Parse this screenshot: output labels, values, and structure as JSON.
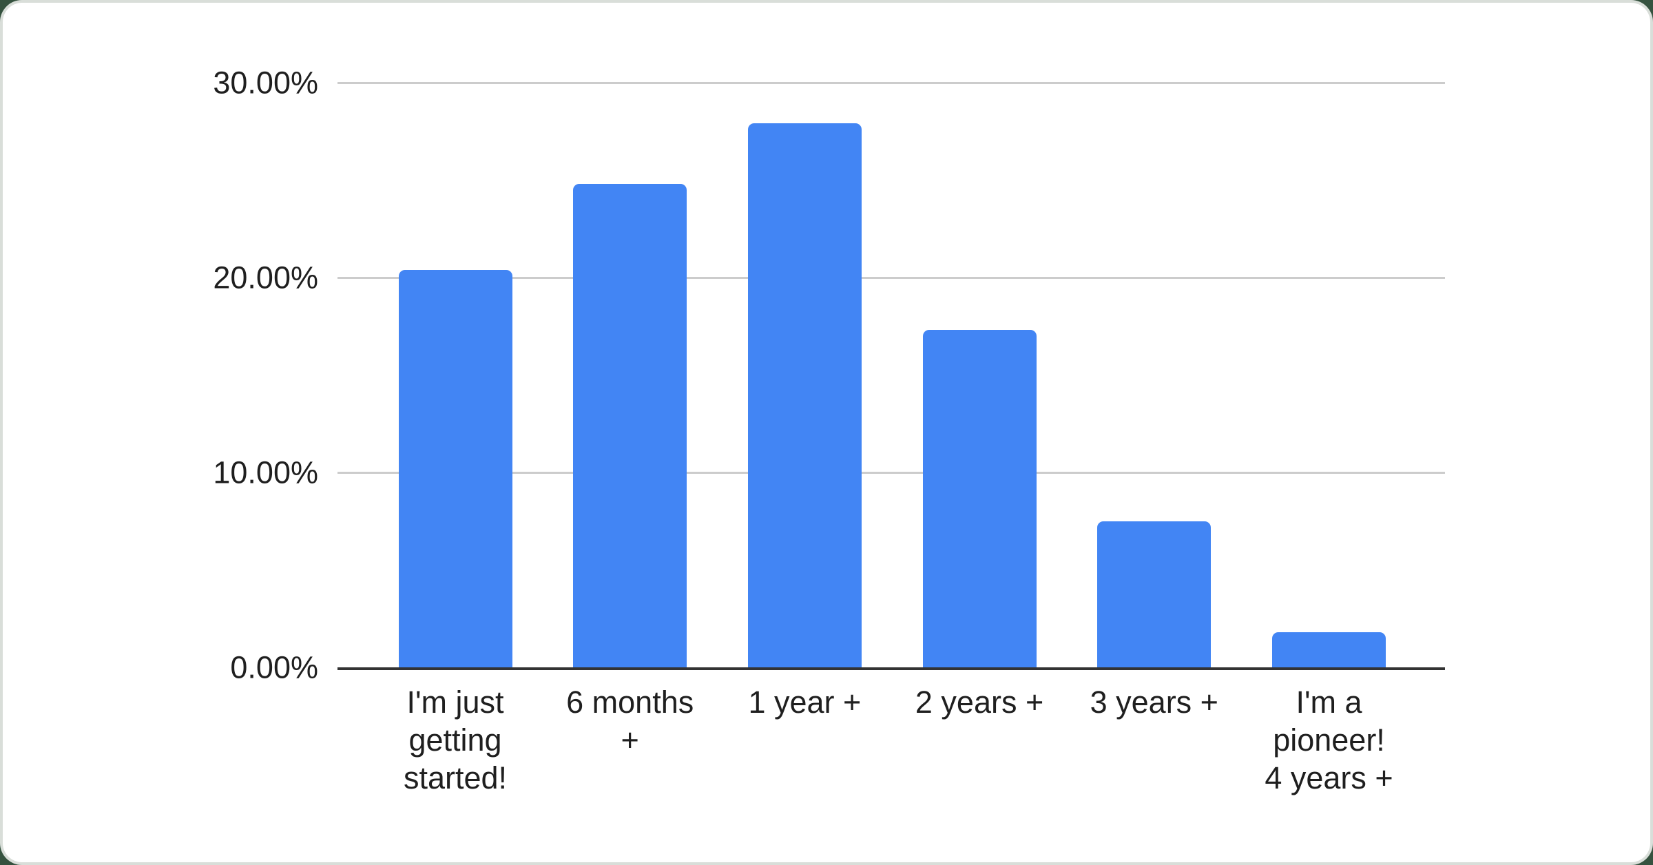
{
  "page": {
    "background_color": "#35523F",
    "card_color": "#ffffff",
    "card_edge_color": "#d9ded9"
  },
  "chart_data": {
    "type": "bar",
    "title": "",
    "xlabel": "",
    "ylabel": "",
    "categories": [
      "I'm just getting started!",
      "6 months +",
      "1 year +",
      "2 years +",
      "3 years +",
      "I'm a pioneer! 4 years +"
    ],
    "category_label_lines": [
      [
        "I'm just",
        "getting",
        "started!"
      ],
      [
        "6 months",
        "+"
      ],
      [
        "1 year +"
      ],
      [
        "2 years +"
      ],
      [
        "3 years +"
      ],
      [
        "I'm a",
        "pioneer!",
        "4 years +"
      ]
    ],
    "values": [
      20.4,
      24.8,
      27.9,
      17.3,
      7.5,
      1.8
    ],
    "unit": "%",
    "ylim": [
      0,
      30
    ],
    "y_ticks": [
      {
        "value": 0,
        "label": "0.00%"
      },
      {
        "value": 10,
        "label": "10.00%"
      },
      {
        "value": 20,
        "label": "20.00%"
      },
      {
        "value": 30,
        "label": "30.00%"
      }
    ],
    "grid": "horizontal gridlines on",
    "legend": "none",
    "bar_color": "#4285F4",
    "gridline_color": "#cccccc",
    "axis_line_color": "#333333",
    "label_color": "#1f1f1f"
  }
}
